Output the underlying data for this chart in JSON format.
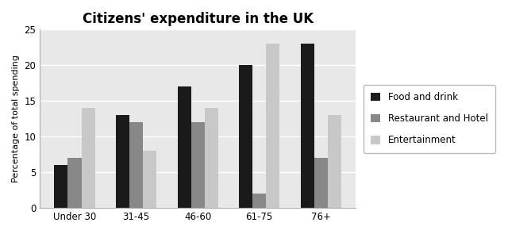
{
  "title": "Citizens' expenditure in the UK",
  "ylabel": "Percentage of total spending",
  "categories": [
    "Under 30",
    "31-45",
    "46-60",
    "61-75",
    "76+"
  ],
  "series": [
    {
      "label": "Food and drink",
      "values": [
        6,
        13,
        17,
        20,
        23
      ],
      "color": "#1a1a1a"
    },
    {
      "label": "Restaurant and Hotel",
      "values": [
        7,
        12,
        12,
        2,
        7
      ],
      "color": "#888888"
    },
    {
      "label": "Entertainment",
      "values": [
        14,
        8,
        14,
        23,
        13
      ],
      "color": "#c8c8c8"
    }
  ],
  "ylim": [
    0,
    25
  ],
  "yticks": [
    0,
    5,
    10,
    15,
    20,
    25
  ],
  "bar_width": 0.22,
  "background_color": "#ffffff",
  "plot_bg_color": "#e8e8e8",
  "title_fontsize": 12,
  "axis_fontsize": 8.5,
  "legend_fontsize": 8.5,
  "ylabel_fontsize": 8
}
